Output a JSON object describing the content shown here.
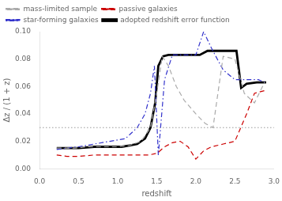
{
  "chart_data": {
    "type": "line",
    "xlabel": "redshift",
    "ylabel": "Δz / (1 + z)",
    "xlim": [
      0.0,
      3.0
    ],
    "ylim": [
      0.0,
      0.1
    ],
    "xticks": [
      {
        "value": 0,
        "label": "0.0"
      },
      0.5,
      {
        "value": 1.0,
        "label": "1.0"
      },
      1.5,
      {
        "value": 2.0,
        "label": "2.0"
      },
      2.5,
      {
        "value": 3.0,
        "label": "3.0"
      }
    ],
    "yticks": [
      {
        "value": 0,
        "label": "0.00"
      },
      {
        "value": 0.02,
        "label": "0.02"
      },
      {
        "value": 0.04,
        "label": "0.04"
      },
      {
        "value": 0.06,
        "label": "0.06"
      },
      {
        "value": 0.08,
        "label": "0.08"
      },
      {
        "value": 0.1,
        "label": "0.10"
      }
    ],
    "grid": false,
    "legend": "upper left",
    "hlines": [
      {
        "value": 0.03,
        "color": "#999999",
        "line_style": "dotted"
      }
    ],
    "series": [
      {
        "name": "mass-limited sample",
        "color": "#aaaaaa",
        "line_style": "dashed",
        "x": [
          0.22,
          0.3,
          0.45,
          0.6,
          0.8,
          1.0,
          1.15,
          1.3,
          1.42,
          1.5,
          1.57,
          1.65,
          1.75,
          1.85,
          2.0,
          2.12,
          2.22,
          2.35,
          2.5,
          2.62,
          2.75,
          2.88
        ],
        "values": [
          0.015,
          0.015,
          0.015,
          0.016,
          0.016,
          0.016,
          0.017,
          0.02,
          0.03,
          0.055,
          0.082,
          0.075,
          0.06,
          0.05,
          0.04,
          0.033,
          0.03,
          0.082,
          0.08,
          0.055,
          0.048,
          0.063
        ]
      },
      {
        "name": "passive galaxies",
        "color": "#cc0000",
        "line_style": "dashed",
        "x": [
          0.22,
          0.35,
          0.5,
          0.7,
          0.9,
          1.1,
          1.3,
          1.4,
          1.48,
          1.52,
          1.6,
          1.7,
          1.8,
          1.9,
          2.0,
          2.1,
          2.2,
          2.35,
          2.5,
          2.65,
          2.75,
          2.88
        ],
        "values": [
          0.01,
          0.009,
          0.009,
          0.01,
          0.01,
          0.01,
          0.01,
          0.01,
          0.011,
          0.012,
          0.016,
          0.019,
          0.02,
          0.016,
          0.007,
          0.013,
          0.016,
          0.018,
          0.02,
          0.04,
          0.055,
          0.057
        ]
      },
      {
        "name": "star-forming galaxies",
        "color": "#3333cc",
        "line_style": "dashdot",
        "x": [
          0.22,
          0.35,
          0.5,
          0.7,
          0.9,
          1.1,
          1.25,
          1.35,
          1.42,
          1.47,
          1.52,
          1.6,
          1.7,
          1.8,
          1.9,
          2.0,
          2.1,
          2.2,
          2.35,
          2.5,
          2.65,
          2.8,
          2.88
        ],
        "values": [
          0.014,
          0.015,
          0.016,
          0.018,
          0.02,
          0.022,
          0.03,
          0.04,
          0.055,
          0.075,
          0.01,
          0.065,
          0.083,
          0.083,
          0.083,
          0.083,
          0.1,
          0.088,
          0.072,
          0.065,
          0.065,
          0.065,
          0.063
        ]
      },
      {
        "name": "adopted redshift error function",
        "color": "#000000",
        "line_style": "solid",
        "x": [
          0.22,
          0.35,
          0.5,
          0.7,
          0.9,
          1.05,
          1.15,
          1.25,
          1.35,
          1.42,
          1.48,
          1.52,
          1.58,
          1.65,
          1.75,
          1.85,
          1.95,
          2.05,
          2.15,
          2.2,
          2.52,
          2.58,
          2.65,
          2.78,
          2.9
        ],
        "values": [
          0.015,
          0.015,
          0.015,
          0.016,
          0.016,
          0.016,
          0.017,
          0.018,
          0.022,
          0.03,
          0.048,
          0.075,
          0.082,
          0.083,
          0.083,
          0.083,
          0.083,
          0.083,
          0.086,
          0.086,
          0.086,
          0.059,
          0.062,
          0.063,
          0.063
        ]
      }
    ]
  }
}
